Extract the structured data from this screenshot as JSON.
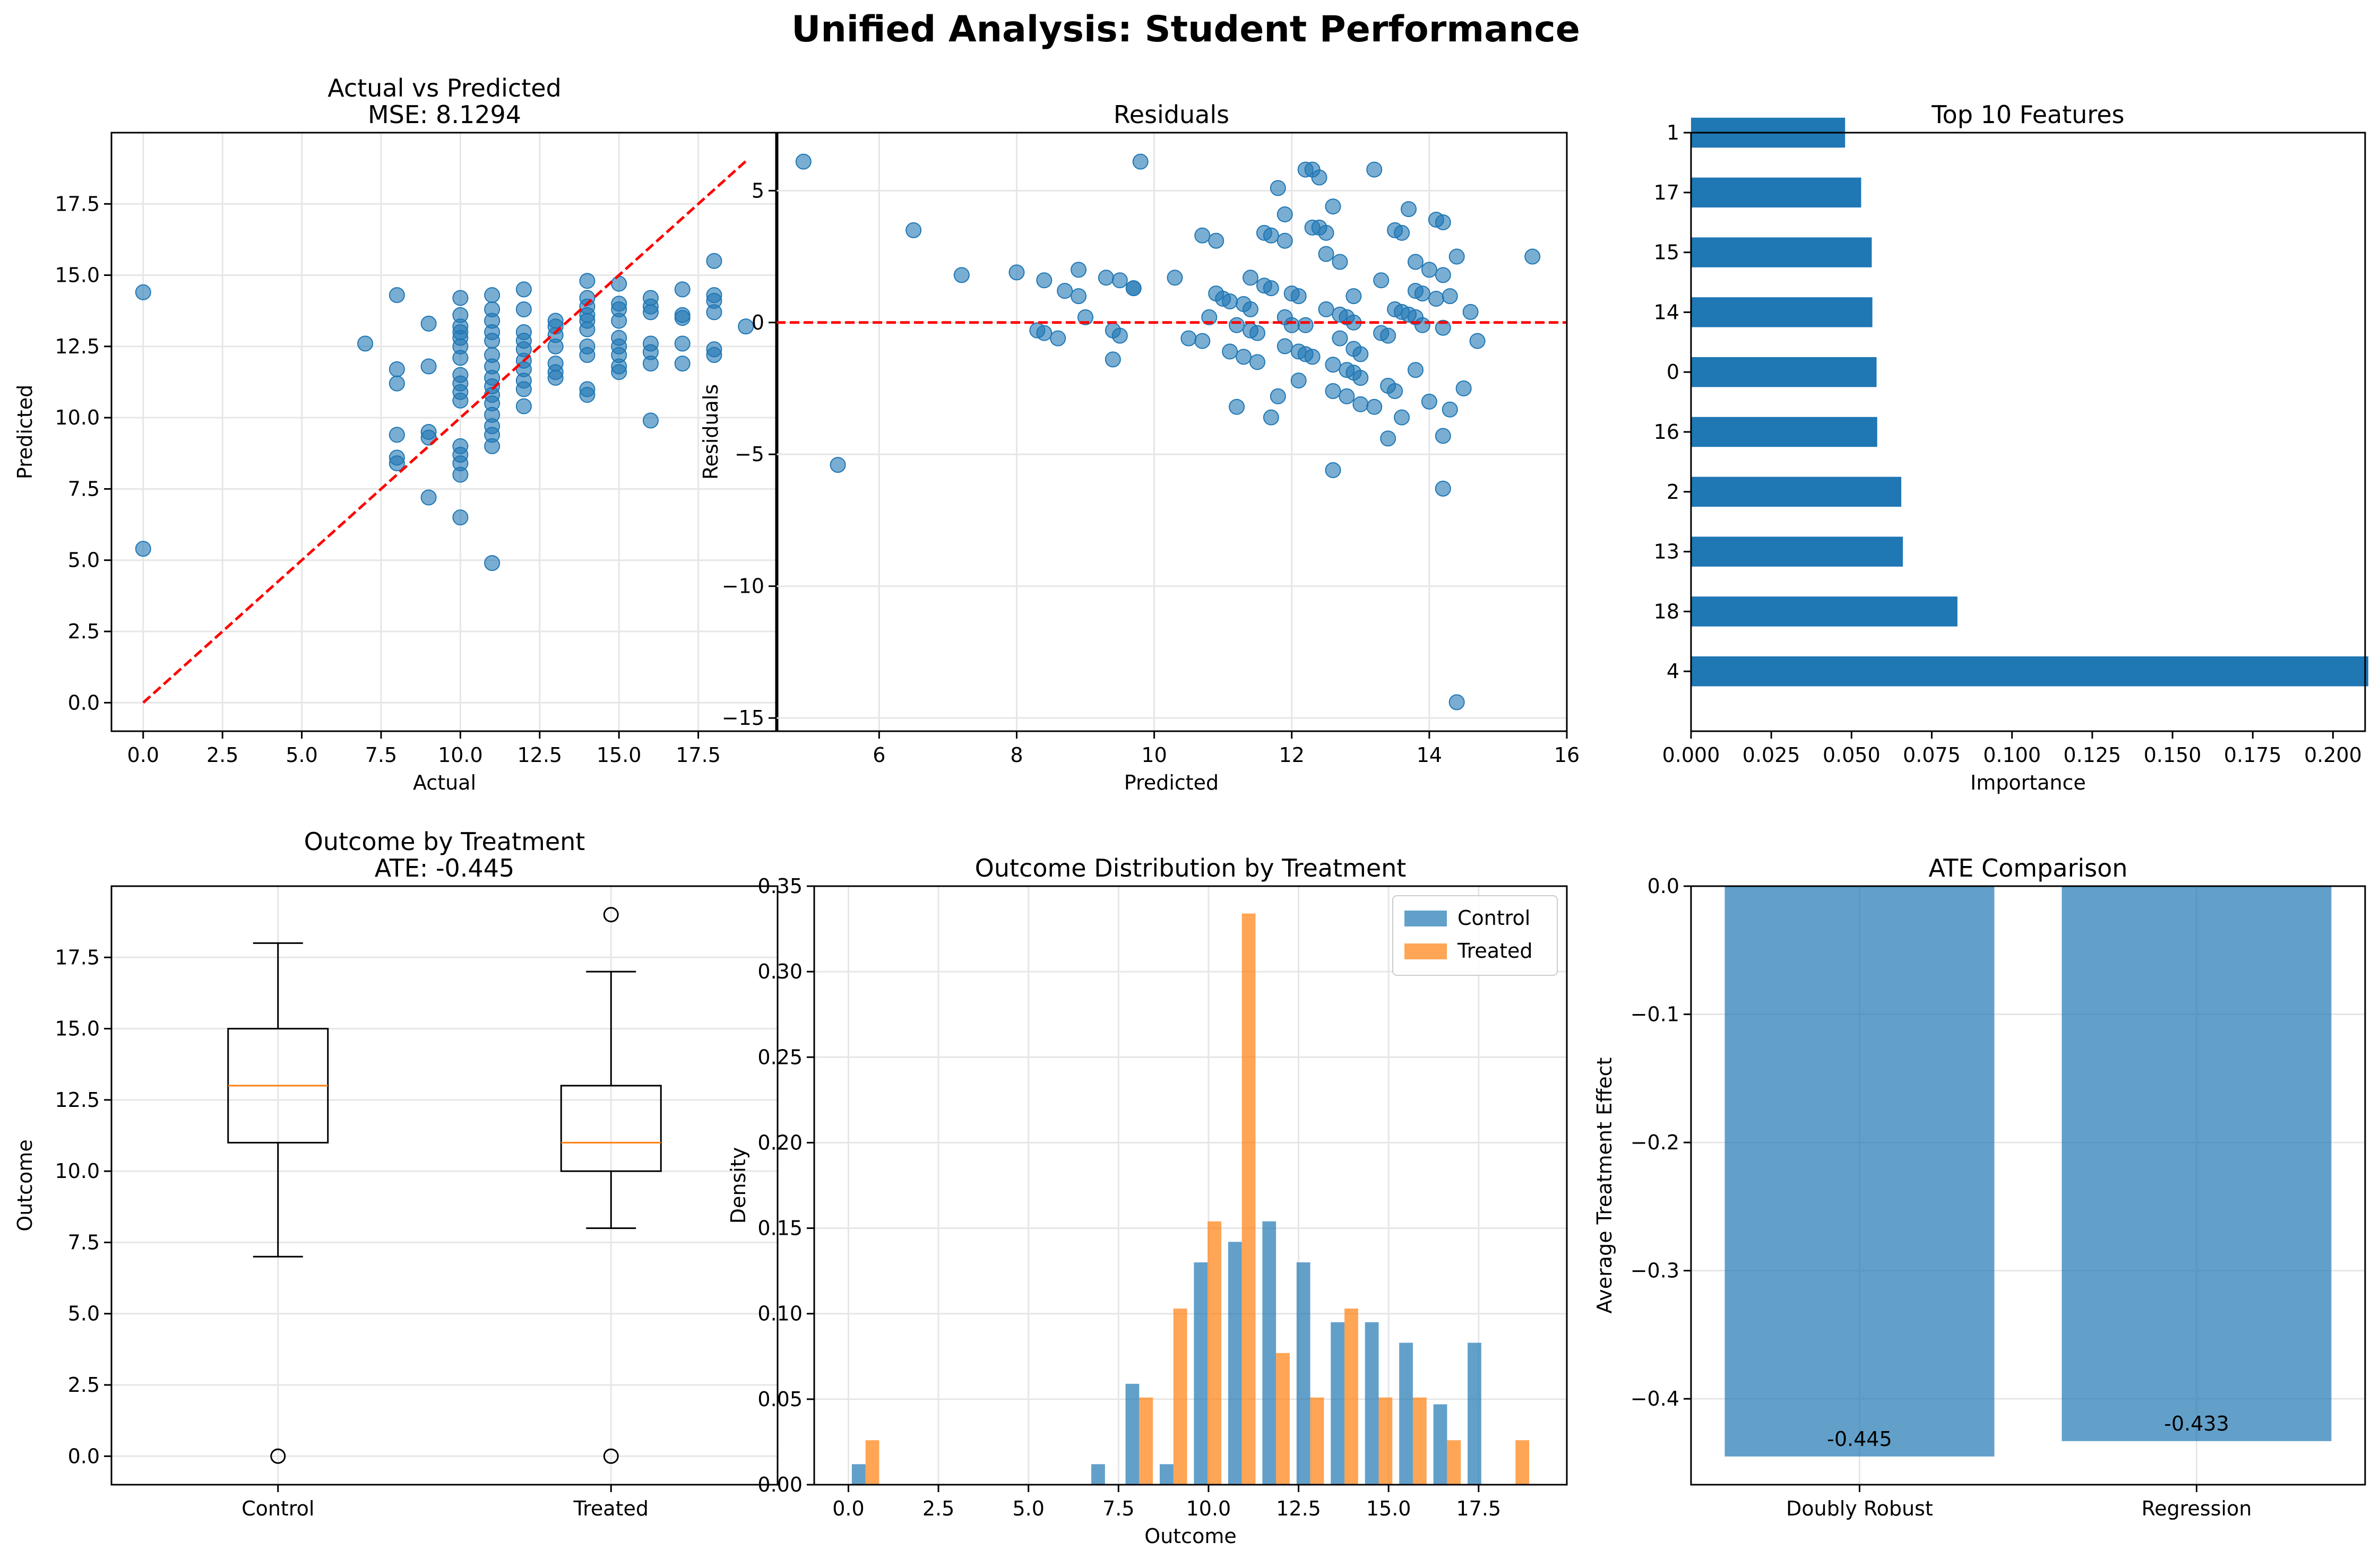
{
  "figure": {
    "title": "Unified Analysis: Student Performance"
  },
  "colors": {
    "blue": "#1f77b4",
    "orange": "#ff7f0e",
    "red": "#ff0000",
    "grid": "#e6e6e6"
  },
  "chart_data": [
    {
      "id": "actual_vs_predicted",
      "type": "scatter",
      "title": "Actual vs Predicted",
      "subtitle": "MSE: 8.1294",
      "xlabel": "Actual",
      "ylabel": "Predicted",
      "xlim": [
        -1,
        20
      ],
      "ylim": [
        -1,
        20
      ],
      "xticks": [
        0,
        2.5,
        5,
        7.5,
        10,
        12.5,
        15,
        17.5
      ],
      "xtick_labels": [
        "0.0",
        "2.5",
        "5.0",
        "7.5",
        "10.0",
        "12.5",
        "15.0",
        "17.5"
      ],
      "yticks": [
        0,
        2.5,
        5,
        7.5,
        10,
        12.5,
        15,
        17.5
      ],
      "ytick_labels": [
        "0.0",
        "2.5",
        "5.0",
        "7.5",
        "10.0",
        "12.5",
        "15.0",
        "17.5"
      ],
      "grid": true,
      "reference_line": {
        "x": [
          0,
          19
        ],
        "y": [
          0,
          19
        ],
        "style": "dashed"
      },
      "points": [
        [
          0,
          14.4
        ],
        [
          0,
          5.4
        ],
        [
          7,
          12.6
        ],
        [
          8,
          14.3
        ],
        [
          8,
          11.7
        ],
        [
          8,
          11.2
        ],
        [
          8,
          9.4
        ],
        [
          8,
          8.6
        ],
        [
          8,
          8.4
        ],
        [
          9,
          13.3
        ],
        [
          9,
          11.8
        ],
        [
          9,
          9.5
        ],
        [
          9,
          9.3
        ],
        [
          9,
          7.2
        ],
        [
          10,
          14.2
        ],
        [
          10,
          13.6
        ],
        [
          10,
          13.2
        ],
        [
          10,
          13.0
        ],
        [
          10,
          12.8
        ],
        [
          10,
          12.5
        ],
        [
          10,
          12.1
        ],
        [
          10,
          11.5
        ],
        [
          10,
          11.2
        ],
        [
          10,
          10.9
        ],
        [
          10,
          10.6
        ],
        [
          10,
          9.0
        ],
        [
          10,
          8.7
        ],
        [
          10,
          8.4
        ],
        [
          10,
          8.0
        ],
        [
          10,
          6.5
        ],
        [
          11,
          14.3
        ],
        [
          11,
          13.8
        ],
        [
          11,
          13.4
        ],
        [
          11,
          13.0
        ],
        [
          11,
          12.7
        ],
        [
          11,
          12.2
        ],
        [
          11,
          11.8
        ],
        [
          11,
          11.4
        ],
        [
          11,
          11.1
        ],
        [
          11,
          10.8
        ],
        [
          11,
          10.5
        ],
        [
          11,
          10.1
        ],
        [
          11,
          9.7
        ],
        [
          11,
          9.4
        ],
        [
          11,
          9.0
        ],
        [
          11,
          4.9
        ],
        [
          12,
          14.5
        ],
        [
          12,
          13.8
        ],
        [
          12,
          13.0
        ],
        [
          12,
          12.7
        ],
        [
          12,
          12.4
        ],
        [
          12,
          12.0
        ],
        [
          12,
          11.7
        ],
        [
          12,
          11.3
        ],
        [
          12,
          11.0
        ],
        [
          12,
          10.4
        ],
        [
          13,
          13.4
        ],
        [
          13,
          13.2
        ],
        [
          13,
          12.9
        ],
        [
          13,
          12.5
        ],
        [
          13,
          11.9
        ],
        [
          13,
          11.6
        ],
        [
          13,
          11.4
        ],
        [
          14,
          14.8
        ],
        [
          14,
          14.2
        ],
        [
          14,
          13.9
        ],
        [
          14,
          13.6
        ],
        [
          14,
          13.4
        ],
        [
          14,
          13.1
        ],
        [
          14,
          12.5
        ],
        [
          14,
          12.2
        ],
        [
          14,
          11.0
        ],
        [
          14,
          10.8
        ],
        [
          15,
          14.7
        ],
        [
          15,
          14.0
        ],
        [
          15,
          13.8
        ],
        [
          15,
          13.4
        ],
        [
          15,
          12.8
        ],
        [
          15,
          12.5
        ],
        [
          15,
          12.2
        ],
        [
          15,
          11.8
        ],
        [
          15,
          11.6
        ],
        [
          16,
          14.2
        ],
        [
          16,
          13.9
        ],
        [
          16,
          13.7
        ],
        [
          16,
          12.6
        ],
        [
          16,
          12.3
        ],
        [
          16,
          11.9
        ],
        [
          16,
          9.9
        ],
        [
          17,
          14.5
        ],
        [
          17,
          13.6
        ],
        [
          17,
          13.5
        ],
        [
          17,
          12.6
        ],
        [
          17,
          11.9
        ],
        [
          18,
          15.5
        ],
        [
          18,
          14.3
        ],
        [
          18,
          14.1
        ],
        [
          18,
          13.7
        ],
        [
          18,
          12.4
        ],
        [
          18,
          12.2
        ],
        [
          19,
          13.2
        ]
      ]
    },
    {
      "id": "residuals",
      "type": "scatter",
      "title": "Residuals",
      "xlabel": "Predicted",
      "ylabel": "Residuals",
      "xlim": [
        4.5,
        16.0
      ],
      "ylim": [
        -15.5,
        7.2
      ],
      "xticks": [
        6,
        8,
        10,
        12,
        14,
        16
      ],
      "xtick_labels": [
        "6",
        "8",
        "10",
        "12",
        "14",
        "16"
      ],
      "yticks": [
        -15,
        -10,
        -5,
        0,
        5
      ],
      "ytick_labels": [
        "−15",
        "−10",
        "−5",
        "0",
        "5"
      ],
      "grid": true,
      "reference_line": {
        "y": 0,
        "style": "dashed"
      },
      "points": [
        [
          4.9,
          6.1
        ],
        [
          5.4,
          -5.4
        ],
        [
          6.5,
          3.5
        ],
        [
          7.2,
          1.8
        ],
        [
          8.0,
          1.9
        ],
        [
          8.3,
          -0.3
        ],
        [
          8.4,
          1.6
        ],
        [
          8.4,
          -0.4
        ],
        [
          8.6,
          -0.6
        ],
        [
          8.7,
          1.2
        ],
        [
          8.9,
          2.0
        ],
        [
          8.9,
          1.0
        ],
        [
          9.0,
          0.2
        ],
        [
          9.3,
          1.7
        ],
        [
          9.4,
          -0.3
        ],
        [
          9.4,
          -1.4
        ],
        [
          9.5,
          1.6
        ],
        [
          9.5,
          -0.5
        ],
        [
          9.7,
          1.3
        ],
        [
          9.7,
          1.3
        ],
        [
          9.8,
          6.1
        ],
        [
          10.3,
          1.7
        ],
        [
          10.5,
          -0.6
        ],
        [
          10.7,
          -0.7
        ],
        [
          10.7,
          3.3
        ],
        [
          10.8,
          0.2
        ],
        [
          10.9,
          1.1
        ],
        [
          10.9,
          3.1
        ],
        [
          11.0,
          0.9
        ],
        [
          11.1,
          0.8
        ],
        [
          11.1,
          -1.1
        ],
        [
          11.2,
          -3.2
        ],
        [
          11.2,
          -0.1
        ],
        [
          11.3,
          0.7
        ],
        [
          11.3,
          -1.3
        ],
        [
          11.4,
          1.7
        ],
        [
          11.4,
          0.5
        ],
        [
          11.4,
          -0.3
        ],
        [
          11.5,
          -1.5
        ],
        [
          11.5,
          -0.4
        ],
        [
          11.6,
          1.4
        ],
        [
          11.6,
          3.4
        ],
        [
          11.7,
          -3.6
        ],
        [
          11.7,
          1.3
        ],
        [
          11.7,
          3.3
        ],
        [
          11.8,
          -2.8
        ],
        [
          11.8,
          5.1
        ],
        [
          11.9,
          0.2
        ],
        [
          11.9,
          4.1
        ],
        [
          11.9,
          3.1
        ],
        [
          11.9,
          -0.9
        ],
        [
          12.0,
          1.1
        ],
        [
          12.0,
          -0.1
        ],
        [
          12.1,
          1.0
        ],
        [
          12.1,
          -2.2
        ],
        [
          12.1,
          -1.1
        ],
        [
          12.2,
          5.8
        ],
        [
          12.2,
          -0.1
        ],
        [
          12.3,
          5.8
        ],
        [
          12.2,
          -1.2
        ],
        [
          12.3,
          -1.3
        ],
        [
          12.3,
          3.6
        ],
        [
          12.4,
          3.6
        ],
        [
          12.4,
          5.5
        ],
        [
          12.5,
          2.6
        ],
        [
          12.5,
          3.4
        ],
        [
          12.5,
          0.5
        ],
        [
          12.6,
          -2.6
        ],
        [
          12.6,
          -1.6
        ],
        [
          12.6,
          4.4
        ],
        [
          12.6,
          -5.6
        ],
        [
          12.7,
          -0.6
        ],
        [
          12.7,
          2.3
        ],
        [
          12.7,
          0.3
        ],
        [
          12.8,
          0.2
        ],
        [
          12.8,
          -1.8
        ],
        [
          12.8,
          -2.8
        ],
        [
          12.9,
          -1.9
        ],
        [
          12.9,
          1.0
        ],
        [
          12.9,
          0.0
        ],
        [
          12.9,
          -1.0
        ],
        [
          13.0,
          -3.1
        ],
        [
          13.0,
          -2.1
        ],
        [
          13.0,
          -1.2
        ],
        [
          13.2,
          5.8
        ],
        [
          13.2,
          -3.2
        ],
        [
          13.3,
          -0.4
        ],
        [
          13.3,
          1.6
        ],
        [
          13.4,
          -4.4
        ],
        [
          13.4,
          -2.4
        ],
        [
          13.4,
          -0.5
        ],
        [
          13.5,
          0.5
        ],
        [
          13.5,
          3.5
        ],
        [
          13.5,
          -2.6
        ],
        [
          13.6,
          0.4
        ],
        [
          13.6,
          3.4
        ],
        [
          13.6,
          -3.6
        ],
        [
          13.7,
          0.3
        ],
        [
          13.7,
          4.3
        ],
        [
          13.8,
          2.3
        ],
        [
          13.8,
          0.2
        ],
        [
          13.8,
          1.2
        ],
        [
          13.8,
          -1.8
        ],
        [
          13.9,
          -0.1
        ],
        [
          13.9,
          1.1
        ],
        [
          14.0,
          -3.0
        ],
        [
          14.0,
          2.0
        ],
        [
          14.1,
          3.9
        ],
        [
          14.1,
          0.9
        ],
        [
          14.2,
          1.8
        ],
        [
          14.2,
          -0.2
        ],
        [
          14.2,
          3.8
        ],
        [
          14.2,
          -4.3
        ],
        [
          14.2,
          -6.3
        ],
        [
          14.3,
          -3.3
        ],
        [
          14.3,
          1.0
        ],
        [
          14.4,
          -14.4
        ],
        [
          14.4,
          2.5
        ],
        [
          14.5,
          -2.5
        ],
        [
          14.6,
          0.4
        ],
        [
          14.7,
          -0.7
        ],
        [
          15.5,
          2.5
        ]
      ]
    },
    {
      "id": "top_features",
      "type": "bar",
      "orientation": "horizontal",
      "title": "Top 10 Features",
      "xlabel": "Importance",
      "ylabel": "",
      "xlim": [
        0,
        0.21
      ],
      "xticks": [
        0,
        0.025,
        0.05,
        0.075,
        0.1,
        0.125,
        0.15,
        0.175,
        0.2
      ],
      "xtick_labels": [
        "0.000",
        "0.025",
        "0.050",
        "0.075",
        "0.100",
        "0.125",
        "0.150",
        "0.175",
        "0.200"
      ],
      "categories": [
        "4",
        "18",
        "13",
        "2",
        "16",
        "0",
        "14",
        "15",
        "17",
        "1"
      ],
      "values": [
        0.211,
        0.083,
        0.066,
        0.0655,
        0.058,
        0.0578,
        0.0565,
        0.0563,
        0.053,
        0.048
      ]
    },
    {
      "id": "outcome_by_treatment",
      "type": "box",
      "title": "Outcome by Treatment",
      "subtitle": "ATE: -0.445",
      "ylabel": "Outcome",
      "ylim": [
        -1,
        20
      ],
      "yticks": [
        0,
        2.5,
        5,
        7.5,
        10,
        12.5,
        15,
        17.5
      ],
      "ytick_labels": [
        "0.0",
        "2.5",
        "5.0",
        "7.5",
        "10.0",
        "12.5",
        "15.0",
        "17.5"
      ],
      "grid": true,
      "categories": [
        "Control",
        "Treated"
      ],
      "boxes": [
        {
          "whislo": 7,
          "q1": 11,
          "med": 13,
          "q3": 15,
          "whishi": 18,
          "fliers": [
            0
          ]
        },
        {
          "whislo": 8,
          "q1": 10,
          "med": 11,
          "q3": 13,
          "whishi": 17,
          "fliers": [
            19,
            0
          ]
        }
      ]
    },
    {
      "id": "outcome_distribution",
      "type": "histogram",
      "title": "Outcome Distribution by Treatment",
      "xlabel": "Outcome",
      "ylabel": "Density",
      "xlim": [
        -0.95,
        19.95
      ],
      "ylim": [
        0,
        0.35
      ],
      "xticks": [
        0,
        2.5,
        5,
        7.5,
        10,
        12.5,
        15,
        17.5
      ],
      "xtick_labels": [
        "0.0",
        "2.5",
        "5.0",
        "7.5",
        "10.0",
        "12.5",
        "15.0",
        "17.5"
      ],
      "yticks": [
        0,
        0.05,
        0.1,
        0.15,
        0.2,
        0.25,
        0.3,
        0.35
      ],
      "ytick_labels": [
        "0.00",
        "0.05",
        "0.10",
        "0.15",
        "0.20",
        "0.25",
        "0.30",
        "0.35"
      ],
      "grid": true,
      "legend_position": "top-right",
      "bin_edges": [
        0,
        0.95,
        1.9,
        2.85,
        3.8,
        4.75,
        5.7,
        6.65,
        7.6,
        8.55,
        9.5,
        10.45,
        11.4,
        12.35,
        13.3,
        14.25,
        15.2,
        16.15,
        17.1,
        18.05,
        19
      ],
      "series": [
        {
          "name": "Control",
          "values": [
            0.012,
            0,
            0,
            0,
            0,
            0,
            0,
            0.012,
            0.059,
            0.012,
            0.13,
            0.142,
            0.154,
            0.13,
            0.095,
            0.095,
            0.083,
            0.047,
            0.083,
            0
          ]
        },
        {
          "name": "Treated",
          "values": [
            0.026,
            0,
            0,
            0,
            0,
            0,
            0,
            0,
            0.051,
            0.103,
            0.154,
            0.334,
            0.077,
            0.051,
            0.103,
            0.051,
            0.051,
            0.026,
            0,
            0.026
          ]
        }
      ]
    },
    {
      "id": "ate_comparison",
      "type": "bar",
      "title": "ATE Comparison",
      "ylabel": "Average Treatment Effect",
      "ylim": [
        -0.467,
        0
      ],
      "yticks": [
        0,
        -0.1,
        -0.2,
        -0.3,
        -0.4
      ],
      "ytick_labels": [
        "0.0",
        "−0.1",
        "−0.2",
        "−0.3",
        "−0.4"
      ],
      "grid": true,
      "categories": [
        "Doubly Robust",
        "Regression"
      ],
      "values": [
        -0.445,
        -0.433
      ],
      "data_labels": [
        "-0.445",
        "-0.433"
      ]
    }
  ]
}
